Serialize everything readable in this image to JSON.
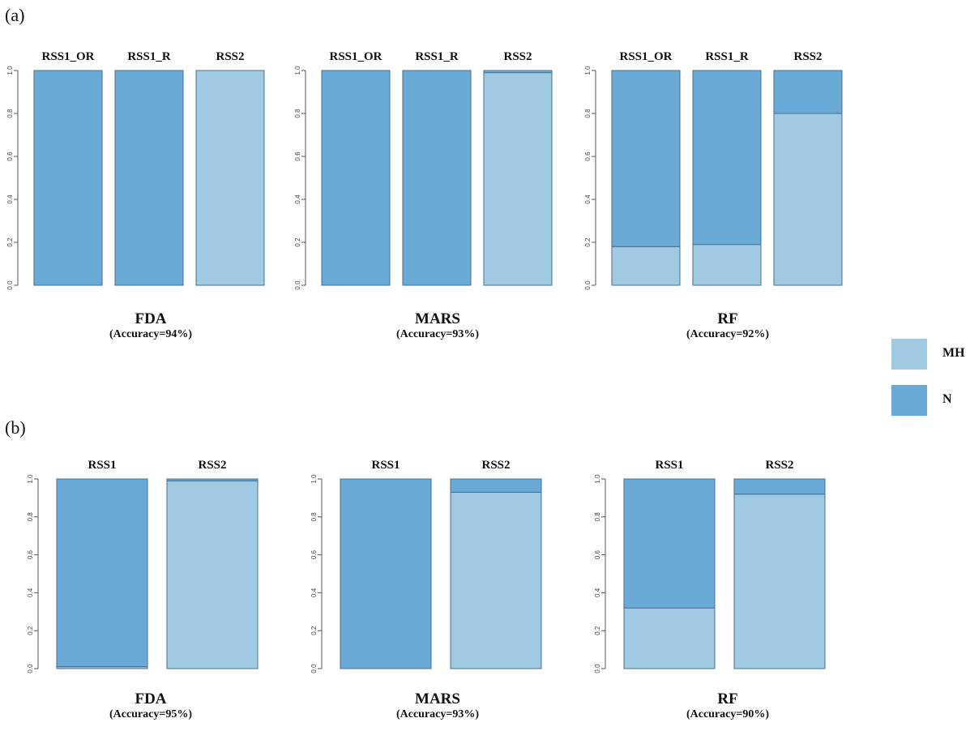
{
  "panels": [
    {
      "label": "(a)"
    },
    {
      "label": "(b)"
    }
  ],
  "legend": {
    "items": [
      {
        "name": "MH",
        "color": "#9fcae1"
      },
      {
        "name": "N",
        "color": "#69abd6"
      }
    ]
  },
  "colors": {
    "MH": "#9fcae1",
    "N": "#69abd6",
    "stroke": "#4a6f8f"
  },
  "chart_data": [
    {
      "type": "bar",
      "stacked": true,
      "panel": "(a)",
      "title": "FDA",
      "subtitle": "(Accuracy=94%)",
      "categories": [
        "RSS1_OR",
        "RSS1_R",
        "RSS2"
      ],
      "series": [
        {
          "name": "MH",
          "values": [
            0.0,
            0.0,
            1.0
          ]
        },
        {
          "name": "N",
          "values": [
            1.0,
            1.0,
            0.0
          ]
        }
      ],
      "ylim": [
        0,
        1
      ],
      "yticks": [
        "0.0",
        "0.2",
        "0.4",
        "0.6",
        "0.8",
        "1.0"
      ]
    },
    {
      "type": "bar",
      "stacked": true,
      "panel": "(a)",
      "title": "MARS",
      "subtitle": "(Accuracy=93%)",
      "categories": [
        "RSS1_OR",
        "RSS1_R",
        "RSS2"
      ],
      "series": [
        {
          "name": "MH",
          "values": [
            0.0,
            0.0,
            0.99
          ]
        },
        {
          "name": "N",
          "values": [
            1.0,
            1.0,
            0.01
          ]
        }
      ],
      "ylim": [
        0,
        1
      ],
      "yticks": [
        "0.0",
        "0.2",
        "0.4",
        "0.6",
        "0.8",
        "1.0"
      ]
    },
    {
      "type": "bar",
      "stacked": true,
      "panel": "(a)",
      "title": "RF",
      "subtitle": "(Accuracy=92%)",
      "categories": [
        "RSS1_OR",
        "RSS1_R",
        "RSS2"
      ],
      "series": [
        {
          "name": "MH",
          "values": [
            0.18,
            0.19,
            0.8
          ]
        },
        {
          "name": "N",
          "values": [
            0.82,
            0.81,
            0.2
          ]
        }
      ],
      "ylim": [
        0,
        1
      ],
      "yticks": [
        "0.0",
        "0.2",
        "0.4",
        "0.6",
        "0.8",
        "1.0"
      ]
    },
    {
      "type": "bar",
      "stacked": true,
      "panel": "(b)",
      "title": "FDA",
      "subtitle": "(Accuracy=95%)",
      "categories": [
        "RSS1",
        "RSS2"
      ],
      "series": [
        {
          "name": "MH",
          "values": [
            0.01,
            0.99
          ]
        },
        {
          "name": "N",
          "values": [
            0.99,
            0.01
          ]
        }
      ],
      "ylim": [
        0,
        1
      ],
      "yticks": [
        "0.0",
        "0.2",
        "0.4",
        "0.6",
        "0.8",
        "1.0"
      ]
    },
    {
      "type": "bar",
      "stacked": true,
      "panel": "(b)",
      "title": "MARS",
      "subtitle": "(Accuracy=93%)",
      "categories": [
        "RSS1",
        "RSS2"
      ],
      "series": [
        {
          "name": "MH",
          "values": [
            0.0,
            0.93
          ]
        },
        {
          "name": "N",
          "values": [
            1.0,
            0.07
          ]
        }
      ],
      "ylim": [
        0,
        1
      ],
      "yticks": [
        "0.0",
        "0.2",
        "0.4",
        "0.6",
        "0.8",
        "1.0"
      ]
    },
    {
      "type": "bar",
      "stacked": true,
      "panel": "(b)",
      "title": "RF",
      "subtitle": "(Accuracy=90%)",
      "categories": [
        "RSS1",
        "RSS2"
      ],
      "series": [
        {
          "name": "MH",
          "values": [
            0.32,
            0.92
          ]
        },
        {
          "name": "N",
          "values": [
            0.68,
            0.08
          ]
        }
      ],
      "ylim": [
        0,
        1
      ],
      "yticks": [
        "0.0",
        "0.2",
        "0.4",
        "0.6",
        "0.8",
        "1.0"
      ]
    }
  ]
}
